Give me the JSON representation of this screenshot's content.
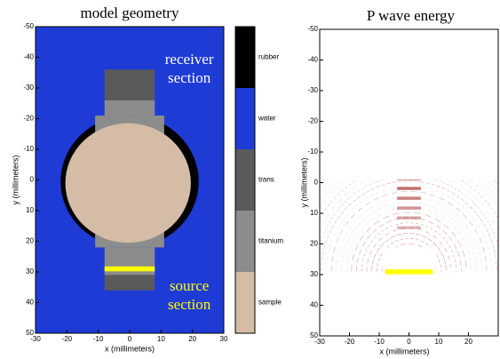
{
  "chart_data": [
    {
      "type": "geometry",
      "title": "model geometry",
      "xlabel": "x (millimeters)",
      "ylabel": "y (millimeters)",
      "xlim": [
        -30,
        30
      ],
      "ylim": [
        -50,
        50
      ],
      "xticks": [
        -30,
        -20,
        -10,
        0,
        10,
        20,
        30
      ],
      "yticks": [
        -50,
        -40,
        -30,
        -20,
        -10,
        0,
        10,
        20,
        30,
        40,
        50
      ],
      "annotations": [
        {
          "lines": [
            "receiver",
            "section"
          ],
          "color": "#ffffff"
        },
        {
          "lines": [
            "source",
            "section"
          ],
          "color": "#ffff00"
        }
      ],
      "colorbar": {
        "labels": [
          "rubber",
          "water",
          "trans",
          "titanium",
          "sample"
        ],
        "colors": [
          "#000000",
          "#1f3bd6",
          "#5a5a5a",
          "#8c8c8c",
          "#d4bca6"
        ]
      }
    },
    {
      "type": "energy",
      "title": "P wave energy",
      "xlabel": "x (millimeters)",
      "ylabel": "y (millimeters)",
      "xlim": [
        -30,
        30
      ],
      "ylim": [
        -50,
        50
      ],
      "xticks": [
        -30,
        -20,
        -10,
        0,
        10,
        20
      ],
      "yticks": [
        -50,
        -40,
        -30,
        -20,
        -10,
        0,
        10,
        20,
        30,
        40,
        50
      ]
    }
  ]
}
